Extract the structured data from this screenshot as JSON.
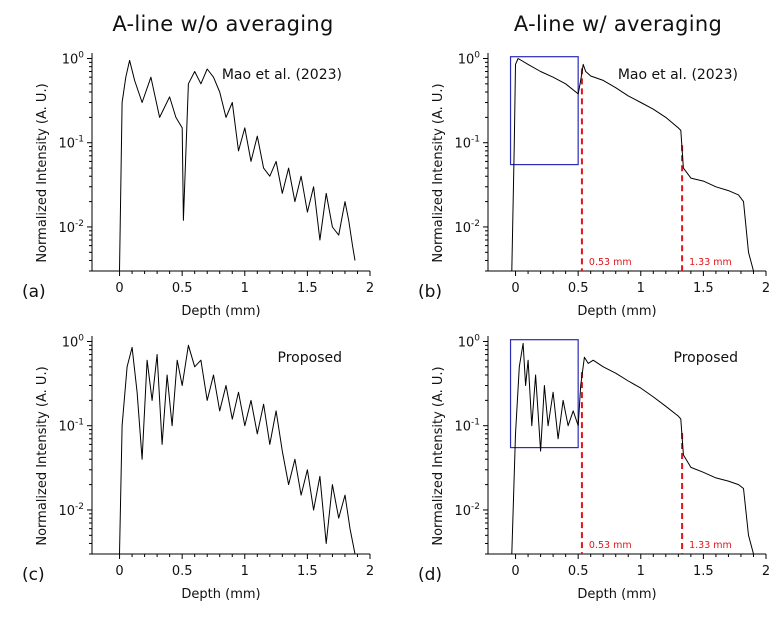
{
  "column_titles": [
    "A-line w/o averaging",
    "A-line w/ averaging"
  ],
  "colors": {
    "trace": "#000000",
    "dashed_marker": "#e0161b",
    "roi_box": "#2b2bb5",
    "axis": "#000000"
  },
  "chart_data": [
    {
      "type": "line",
      "panel": "(a)",
      "annotation": "Mao et al. (2023)",
      "xlabel": "Depth (mm)",
      "ylabel": "Normalized Intensity (A. U.)",
      "xlim": [
        -0.22,
        2.0
      ],
      "ylim": [
        0.003,
        1.1
      ],
      "yscale": "log",
      "x_ticks": [
        "0",
        "0.5",
        "1",
        "1.5",
        "2"
      ],
      "y_ticks": [
        "10^0",
        "10^-1",
        "10^-2"
      ],
      "series": [
        {
          "x": [
            0,
            0.02,
            0.05,
            0.08,
            0.12,
            0.18,
            0.25,
            0.32,
            0.4,
            0.45,
            0.5,
            0.51,
            0.55,
            0.6,
            0.65,
            0.7,
            0.75,
            0.8,
            0.85,
            0.9,
            0.95,
            1.0,
            1.05,
            1.1,
            1.15,
            1.2,
            1.25,
            1.3,
            1.35,
            1.4,
            1.45,
            1.5,
            1.55,
            1.6,
            1.65,
            1.7,
            1.75,
            1.8,
            1.83,
            1.86,
            1.88
          ],
          "y": [
            0.003,
            0.3,
            0.6,
            0.95,
            0.55,
            0.3,
            0.6,
            0.2,
            0.35,
            0.2,
            0.15,
            0.012,
            0.5,
            0.7,
            0.5,
            0.75,
            0.6,
            0.4,
            0.2,
            0.3,
            0.08,
            0.15,
            0.06,
            0.12,
            0.05,
            0.04,
            0.06,
            0.025,
            0.05,
            0.02,
            0.04,
            0.015,
            0.03,
            0.007,
            0.025,
            0.01,
            0.008,
            0.02,
            0.012,
            0.006,
            0.004
          ]
        }
      ]
    },
    {
      "type": "line",
      "panel": "(b)",
      "annotation": "Mao et al. (2023)",
      "xlabel": "Depth (mm)",
      "ylabel": "Normalized Intensity (A. U.)",
      "xlim": [
        -0.22,
        2.0
      ],
      "ylim": [
        0.003,
        1.1
      ],
      "yscale": "log",
      "x_ticks": [
        "0",
        "0.5",
        "1",
        "1.5",
        "2"
      ],
      "y_ticks": [
        "10^0",
        "10^-1",
        "10^-2"
      ],
      "markers": [
        {
          "x": 0.53,
          "label": "0.53 mm"
        },
        {
          "x": 1.33,
          "label": "1.33 mm"
        }
      ],
      "roi_box": {
        "x": [
          -0.04,
          0.5
        ],
        "y": [
          0.055,
          1.05
        ]
      },
      "series": [
        {
          "x": [
            -0.03,
            -0.01,
            0.0,
            0.02,
            0.1,
            0.2,
            0.3,
            0.4,
            0.5,
            0.52,
            0.54,
            0.56,
            0.6,
            0.7,
            0.8,
            0.9,
            1.0,
            1.1,
            1.2,
            1.3,
            1.32,
            1.34,
            1.4,
            1.5,
            1.6,
            1.7,
            1.78,
            1.82,
            1.86,
            1.9
          ],
          "y": [
            0.003,
            0.1,
            0.85,
            1.0,
            0.85,
            0.7,
            0.6,
            0.5,
            0.38,
            0.55,
            0.85,
            0.7,
            0.62,
            0.55,
            0.45,
            0.36,
            0.3,
            0.25,
            0.2,
            0.15,
            0.14,
            0.05,
            0.038,
            0.035,
            0.03,
            0.027,
            0.024,
            0.02,
            0.005,
            0.003
          ]
        }
      ]
    },
    {
      "type": "line",
      "panel": "(c)",
      "annotation": "Proposed",
      "xlabel": "Depth (mm)",
      "ylabel": "Normalized Intensity (A. U.)",
      "xlim": [
        -0.22,
        2.0
      ],
      "ylim": [
        0.003,
        1.1
      ],
      "yscale": "log",
      "x_ticks": [
        "0",
        "0.5",
        "1",
        "1.5",
        "2"
      ],
      "y_ticks": [
        "10^0",
        "10^-1",
        "10^-2"
      ],
      "series": [
        {
          "x": [
            0,
            0.02,
            0.06,
            0.1,
            0.14,
            0.18,
            0.22,
            0.26,
            0.3,
            0.34,
            0.38,
            0.42,
            0.46,
            0.5,
            0.55,
            0.6,
            0.65,
            0.7,
            0.75,
            0.8,
            0.85,
            0.9,
            0.95,
            1.0,
            1.05,
            1.1,
            1.15,
            1.2,
            1.25,
            1.3,
            1.35,
            1.4,
            1.45,
            1.5,
            1.55,
            1.6,
            1.65,
            1.7,
            1.75,
            1.8,
            1.84,
            1.88
          ],
          "y": [
            0.003,
            0.1,
            0.5,
            0.85,
            0.25,
            0.04,
            0.6,
            0.2,
            0.7,
            0.06,
            0.4,
            0.1,
            0.6,
            0.3,
            0.9,
            0.5,
            0.6,
            0.2,
            0.4,
            0.15,
            0.3,
            0.12,
            0.25,
            0.1,
            0.2,
            0.08,
            0.18,
            0.06,
            0.15,
            0.05,
            0.02,
            0.04,
            0.015,
            0.03,
            0.01,
            0.025,
            0.004,
            0.02,
            0.008,
            0.015,
            0.006,
            0.003
          ]
        }
      ]
    },
    {
      "type": "line",
      "panel": "(d)",
      "annotation": "Proposed",
      "xlabel": "Depth (mm)",
      "ylabel": "Normalized Intensity (A. U.)",
      "xlim": [
        -0.22,
        2.0
      ],
      "ylim": [
        0.003,
        1.1
      ],
      "yscale": "log",
      "x_ticks": [
        "0",
        "0.5",
        "1",
        "1.5",
        "2"
      ],
      "y_ticks": [
        "10^0",
        "10^-1",
        "10^-2"
      ],
      "markers": [
        {
          "x": 0.53,
          "label": "0.53 mm"
        },
        {
          "x": 1.33,
          "label": "1.33 mm"
        }
      ],
      "roi_box": {
        "x": [
          -0.04,
          0.5
        ],
        "y": [
          0.055,
          1.05
        ]
      },
      "series": [
        {
          "x": [
            -0.03,
            0.0,
            0.03,
            0.06,
            0.08,
            0.1,
            0.13,
            0.16,
            0.2,
            0.23,
            0.26,
            0.3,
            0.34,
            0.38,
            0.42,
            0.46,
            0.5,
            0.52,
            0.55,
            0.58,
            0.62,
            0.7,
            0.8,
            0.9,
            1.0,
            1.1,
            1.2,
            1.3,
            1.32,
            1.34,
            1.4,
            1.5,
            1.6,
            1.7,
            1.78,
            1.82,
            1.86,
            1.9
          ],
          "y": [
            0.003,
            0.08,
            0.5,
            0.95,
            0.3,
            0.6,
            0.1,
            0.4,
            0.05,
            0.3,
            0.1,
            0.25,
            0.07,
            0.2,
            0.1,
            0.15,
            0.1,
            0.3,
            0.65,
            0.55,
            0.6,
            0.5,
            0.42,
            0.34,
            0.28,
            0.22,
            0.17,
            0.13,
            0.12,
            0.045,
            0.032,
            0.028,
            0.024,
            0.022,
            0.02,
            0.018,
            0.005,
            0.003
          ]
        }
      ]
    }
  ]
}
